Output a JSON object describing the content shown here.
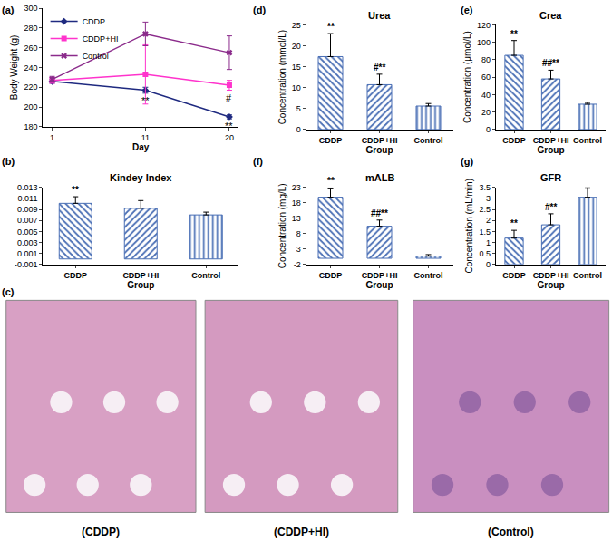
{
  "chart_data": [
    {
      "type": "line",
      "panel_label": "(a)",
      "x_label": "Day",
      "y_label": "Body Weight (g)",
      "x": [
        1,
        11,
        20
      ],
      "xlim": [
        0,
        21
      ],
      "xticks": [
        1,
        11,
        20
      ],
      "ylim": [
        180,
        300
      ],
      "yticks": [
        180,
        200,
        220,
        240,
        260,
        280,
        300
      ],
      "grid": false,
      "legend": "upper left",
      "series": [
        {
          "name": "CDDP",
          "color": "#1f2a80",
          "marker": "diamond",
          "line_style": "solid",
          "values": [
            226,
            217,
            190
          ],
          "errors": [
            2,
            3,
            2
          ],
          "sig_labels": [
            null,
            "**",
            "**"
          ]
        },
        {
          "name": "CDDP+HI",
          "color": "#ff33cc",
          "marker": "square",
          "line_style": "solid",
          "values": [
            227,
            233,
            222
          ],
          "errors": [
            3,
            30,
            5
          ],
          "sig_labels": [
            null,
            null,
            "#"
          ]
        },
        {
          "name": "Control",
          "color": "#8b2b8b",
          "marker": "x",
          "line_style": "solid",
          "values": [
            228,
            274,
            255
          ],
          "errors": [
            3,
            12,
            17
          ],
          "sig_labels": [
            null,
            null,
            null
          ]
        }
      ]
    },
    {
      "type": "bar",
      "panel_label": "(b)",
      "title": "Kindey Index",
      "x_label": "Group",
      "categories": [
        "CDDP",
        "CDDP+HI",
        "Control"
      ],
      "values": [
        0.0101,
        0.0092,
        0.008
      ],
      "errors": [
        0.0012,
        0.0014,
        0.0005
      ],
      "sig_labels": [
        "**",
        null,
        null
      ],
      "color": "#4a6fb5",
      "ylim": [
        -0.001,
        0.013
      ],
      "yticks": [
        -0.001,
        0.001,
        0.003,
        0.005,
        0.007,
        0.009,
        0.011,
        0.013
      ],
      "grid": false
    },
    {
      "type": "bar",
      "panel_label": "(d)",
      "title": "Urea",
      "x_label": "Group",
      "y_label": "Concentration (mmol/L)",
      "categories": [
        "CDDP",
        "CDDP+HI",
        "Control"
      ],
      "values": [
        17.4,
        10.7,
        5.6
      ],
      "errors": [
        5.5,
        2.5,
        0.6
      ],
      "sig_labels": [
        "**",
        "#**",
        null
      ],
      "color": "#4a6fb5",
      "ylim": [
        0,
        25
      ],
      "yticks": [
        0,
        5,
        10,
        15,
        20,
        25
      ],
      "grid": false
    },
    {
      "type": "bar",
      "panel_label": "(e)",
      "title": "Crea",
      "x_label": "Group",
      "y_label": "Concentration (μmol/L)",
      "categories": [
        "CDDP",
        "CDDP+HI",
        "Control"
      ],
      "values": [
        85,
        58,
        29
      ],
      "errors": [
        17,
        10,
        2
      ],
      "sig_labels": [
        "**",
        "##**",
        null
      ],
      "color": "#4a6fb5",
      "ylim": [
        0,
        120
      ],
      "yticks": [
        0,
        20,
        40,
        60,
        80,
        100,
        120
      ],
      "grid": false
    },
    {
      "type": "bar",
      "panel_label": "(f)",
      "title": "mALB",
      "x_label": "Group",
      "y_label": "Concentration (mg/L)",
      "categories": [
        "CDDP",
        "CDDP+HI",
        "Control"
      ],
      "values": [
        19.8,
        10.4,
        0.7
      ],
      "errors": [
        3,
        2,
        0.5
      ],
      "sig_labels": [
        "**",
        "##**",
        null
      ],
      "color": "#4a6fb5",
      "ylim": [
        -2,
        23
      ],
      "yticks": [
        -2,
        3,
        8,
        13,
        18,
        23
      ],
      "grid": false
    },
    {
      "type": "bar",
      "panel_label": "(g)",
      "title": "GFR",
      "x_label": "Group",
      "y_label": "Concentration (mL/min)",
      "categories": [
        "CDDP",
        "CDDP+HI",
        "Control"
      ],
      "values": [
        1.2,
        1.8,
        3.05
      ],
      "errors": [
        0.35,
        0.5,
        0.45
      ],
      "sig_labels": [
        "**",
        "#**",
        null
      ],
      "color": "#4a6fb5",
      "ylim": [
        0,
        3.5
      ],
      "yticks": [
        0,
        0.5,
        1,
        1.5,
        2,
        2.5,
        3,
        3.5
      ],
      "grid": false
    }
  ],
  "images": {
    "panel_label": "(c)",
    "captions": [
      "(CDDP)",
      "(CDDP+HI)",
      "(Control)"
    ]
  }
}
